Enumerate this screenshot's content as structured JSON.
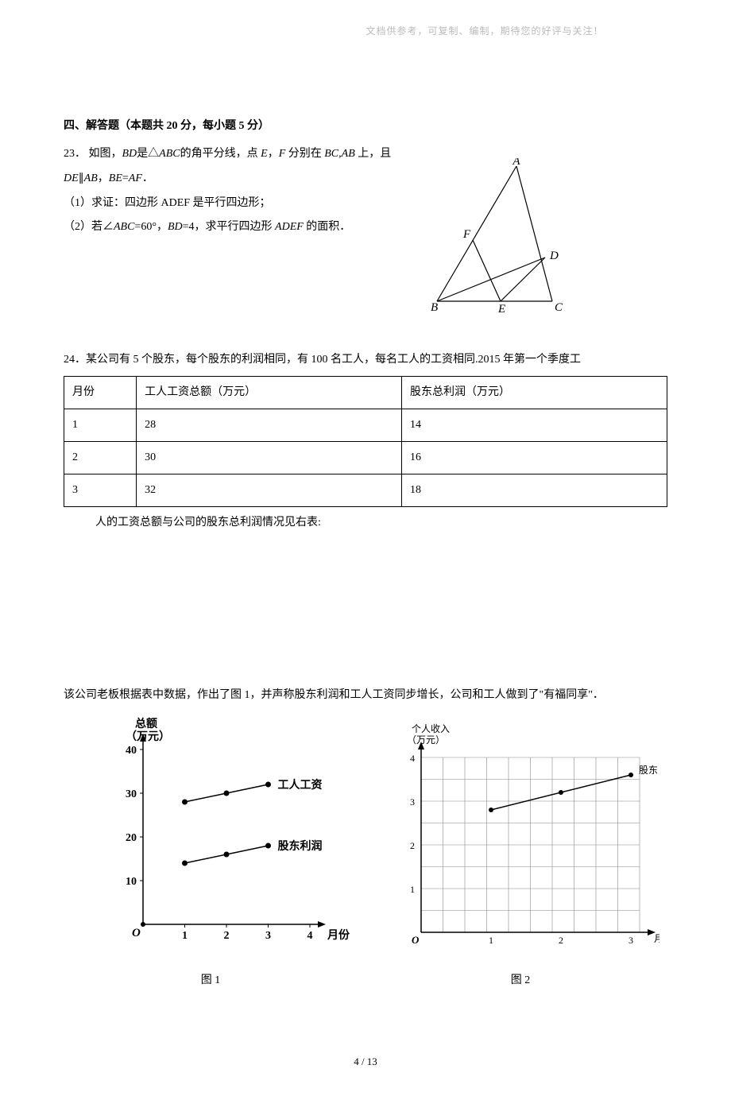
{
  "header_note": "文档供参考，可复制、编制，期待您的好评与关注！",
  "section_title": "四、解答题（本题共 20 分，每小题 5 分）",
  "q23": {
    "num": "23．",
    "intro_a": "如图，",
    "bd": "BD",
    "intro_b": "是△",
    "abc": "ABC",
    "intro_c": "的角平分线，点 ",
    "e": "E",
    "intro_d": "，",
    "f": "F",
    "intro_e": " 分别在 ",
    "bc": "BC",
    "comma": ",",
    "ab": "AB",
    "intro_f": " 上，且 ",
    "de": "DE",
    "par": "∥",
    "ab2": "AB",
    "sep": "，",
    "be": "BE",
    "eq": "=",
    "af": "AF",
    "period": "．",
    "p1_a": "（1）求证：四边形 ADEF 是平行四边形；",
    "p2_a": "（2）若∠",
    "abc2": "ABC",
    "p2_b": "=60°，",
    "bd2": "BD",
    "p2_c": "=4，求平行四边形 ",
    "adef": "ADEF",
    "p2_d": " 的面积．",
    "labels": {
      "A": "A",
      "B": "B",
      "C": "C",
      "D": "D",
      "E": "E",
      "F": "F"
    }
  },
  "q24": {
    "num": "24．",
    "text": "某公司有 5 个股东，每个股东的利润相同，有 100 名工人，每名工人的工资相同.2015 年第一个季度工",
    "trail": "人的工资总额与公司的股东总利润情况见右表:",
    "table": {
      "h1": "月份",
      "h2": "工人工资总额（万元）",
      "h3": "股东总利润（万元）",
      "r1c1": "1",
      "r1c2": "28",
      "r1c3": "14",
      "r2c1": "2",
      "r2c2": "30",
      "r2c3": "16",
      "r3c1": "3",
      "r3c2": "32",
      "r3c3": "18"
    },
    "para2": "该公司老板根据表中数据，作出了图 1，并声称股东利润和工人工资同步增长，公司和工人做到了\"有福同享\"．",
    "fig1_label": "图 1",
    "fig2_label": "图 2"
  },
  "chart1": {
    "ylabel_l1": "总额",
    "ylabel_l2": "（万元）",
    "xlabel": "月份",
    "origin": "O",
    "yticks": {
      "10": "10",
      "20": "20",
      "30": "30",
      "40": "40"
    },
    "xticks": {
      "1": "1",
      "2": "2",
      "3": "3",
      "4": "4"
    },
    "series1_label": "工人工资",
    "series2_label": "股东利润",
    "series1_values": [
      28,
      30,
      32
    ],
    "series2_values": [
      14,
      16,
      18
    ],
    "axis_color": "#000",
    "point_color": "#000",
    "line_color": "#000"
  },
  "chart2": {
    "ylabel_l1": "个人收入",
    "ylabel_l2": "（万元）",
    "xlabel": "月份",
    "origin": "O",
    "yticks": {
      "1": "1",
      "2": "2",
      "3": "3",
      "4": "4"
    },
    "xticks": {
      "1": "1",
      "2": "2",
      "3": "3"
    },
    "series_label": "股东",
    "values": [
      2.8,
      3.2,
      3.6
    ],
    "grid_color": "#888",
    "axis_color": "#000",
    "point_color": "#000",
    "line_color": "#000"
  },
  "page_num": "4 / 13"
}
